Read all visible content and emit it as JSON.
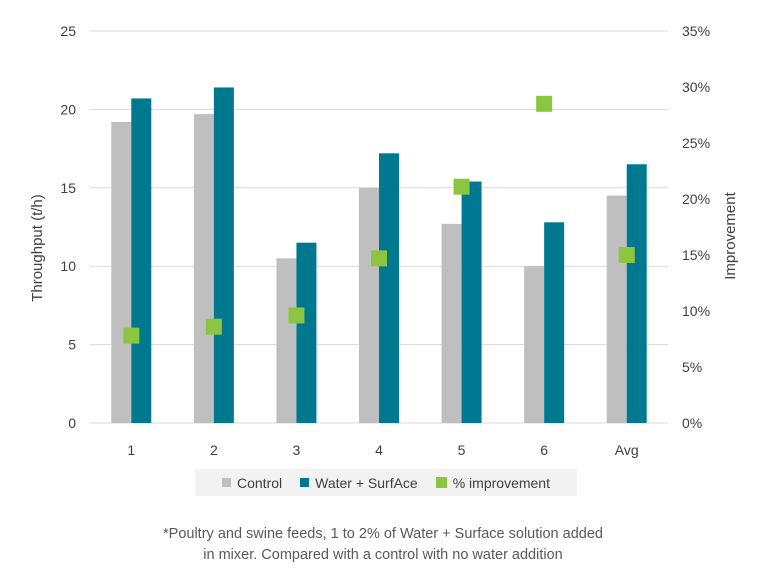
{
  "chart_data": {
    "type": "bar",
    "categories": [
      "1",
      "2",
      "3",
      "4",
      "5",
      "6",
      "Avg"
    ],
    "series": [
      {
        "name": "Control",
        "type": "bar",
        "axis": "left",
        "color": "#bfbfbf",
        "values": [
          19.2,
          19.7,
          10.5,
          15.0,
          12.7,
          10.0,
          14.5
        ]
      },
      {
        "name": "Water + SurfAce",
        "type": "bar",
        "axis": "left",
        "color": "#00788f",
        "values": [
          20.7,
          21.4,
          11.5,
          17.2,
          15.4,
          12.8,
          16.5
        ]
      },
      {
        "name": "% improvement",
        "type": "scatter",
        "axis": "right",
        "color": "#8cc540",
        "values": [
          7.8,
          8.6,
          9.6,
          14.7,
          21.1,
          28.5,
          15.0
        ]
      }
    ],
    "ylabel": "Throughput (t/h)",
    "ylim": [
      0,
      25
    ],
    "yticks": [
      "0",
      "5",
      "10",
      "15",
      "20",
      "25"
    ],
    "y2label": "Improvement",
    "y2lim": [
      0,
      35
    ],
    "y2ticks": [
      "0%",
      "5%",
      "10%",
      "15%",
      "20%",
      "25%",
      "30%",
      "35%"
    ],
    "grid": true,
    "legend_position": "bottom"
  },
  "footnote": {
    "line1": "*Poultry and swine feeds, 1 to 2% of Water + Surface solution added",
    "line2": "in mixer. Compared with a control with no water addition"
  }
}
